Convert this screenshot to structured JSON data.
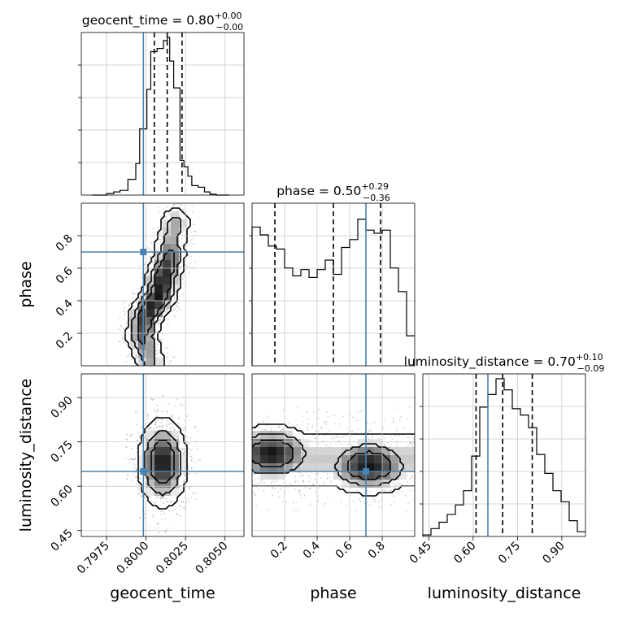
{
  "chart_data": {
    "type": "corner",
    "parameters": [
      "geocent_time",
      "phase",
      "luminosity_distance"
    ],
    "axis_labels": [
      "geocent_time",
      "phase",
      "luminosity_distance"
    ],
    "ranges": {
      "geocent_time": [
        0.7959,
        0.8062
      ],
      "phase": [
        0.0,
        1.0
      ],
      "luminosity_distance": [
        0.43,
        0.98
      ]
    },
    "ticks": {
      "geocent_time": {
        "values": [
          0.7975,
          0.8,
          0.8025,
          0.805
        ],
        "labels": [
          "0.7975",
          "0.8000",
          "0.8025",
          "0.8050"
        ]
      },
      "phase": {
        "values": [
          0.2,
          0.4,
          0.6,
          0.8
        ],
        "labels": [
          "0.2",
          "0.4",
          "0.6",
          "0.8"
        ]
      },
      "luminosity_distance": {
        "values": [
          0.45,
          0.6,
          0.75,
          0.9
        ],
        "labels": [
          "0.45",
          "0.60",
          "0.75",
          "0.90"
        ]
      }
    },
    "truths": {
      "geocent_time": 0.79983,
      "phase": 0.7,
      "luminosity_distance": 0.65
    },
    "truth_color": "#4682b4",
    "grid": true,
    "titles": [
      {
        "param": "geocent_time",
        "label": "geocent_time = 0.80",
        "plus": "+0.00",
        "minus": "−0.00"
      },
      {
        "param": "phase",
        "label": "phase = 0.50",
        "plus": "+0.29",
        "minus": "−0.36"
      },
      {
        "param": "luminosity_distance",
        "label": "luminosity_distance = 0.70",
        "plus": "+0.10",
        "minus": "−0.09"
      }
    ],
    "quantiles": {
      "geocent_time": [
        0.80052,
        0.80134,
        0.80228
      ],
      "phase": [
        0.14,
        0.5,
        0.79
      ],
      "luminosity_distance": [
        0.61,
        0.7,
        0.8
      ]
    },
    "histograms": {
      "geocent_time": {
        "bins": [
          0.7966,
          0.7975,
          0.79795,
          0.79835,
          0.79885,
          0.79935,
          0.7996,
          0.80005,
          0.8003,
          0.8007,
          0.8011,
          0.80135,
          0.8015,
          0.80175,
          0.80215,
          0.8024,
          0.80265,
          0.8029,
          0.8033,
          0.8037,
          0.80405,
          0.80445,
          0.8048,
          0.80525
        ],
        "counts": [
          0.0,
          0.01,
          0.02,
          0.03,
          0.1,
          0.2,
          0.42,
          0.67,
          0.91,
          0.93,
          0.98,
          1.0,
          0.85,
          0.68,
          0.22,
          0.18,
          0.12,
          0.06,
          0.05,
          0.02,
          0.005,
          0.0,
          0.0
        ]
      },
      "phase": {
        "bins": [
          0.0,
          0.05,
          0.1,
          0.15,
          0.2,
          0.25,
          0.3,
          0.35,
          0.4,
          0.45,
          0.5,
          0.55,
          0.6,
          0.65,
          0.7,
          0.75,
          0.8,
          0.85,
          0.9,
          0.95,
          1.0
        ],
        "counts": [
          0.88,
          0.83,
          0.76,
          0.74,
          0.62,
          0.57,
          0.61,
          0.56,
          0.61,
          0.67,
          0.58,
          0.75,
          0.8,
          0.93,
          0.86,
          0.84,
          0.86,
          0.62,
          0.47,
          0.19
        ]
      },
      "luminosity_distance": {
        "bins": [
          0.43,
          0.4575,
          0.485,
          0.5125,
          0.54,
          0.5675,
          0.595,
          0.6225,
          0.65,
          0.6775,
          0.705,
          0.7325,
          0.76,
          0.7875,
          0.815,
          0.8425,
          0.87,
          0.8975,
          0.925,
          0.9525,
          0.98
        ],
        "counts": [
          0.01,
          0.05,
          0.09,
          0.14,
          0.2,
          0.29,
          0.51,
          0.82,
          0.9,
          1.0,
          0.93,
          0.81,
          0.77,
          0.69,
          0.52,
          0.4,
          0.29,
          0.22,
          0.1,
          0.03
        ]
      }
    },
    "density_pairs": [
      {
        "x": "geocent_time",
        "y": "phase",
        "ridge": [
          [
            0.80025,
            0.03
          ],
          [
            0.79975,
            0.18
          ],
          [
            0.79995,
            0.3
          ],
          [
            0.8009,
            0.45
          ],
          [
            0.8011,
            0.55
          ],
          [
            0.80145,
            0.65
          ],
          [
            0.80155,
            0.75
          ],
          [
            0.80185,
            0.88
          ]
        ]
      },
      {
        "x": "geocent_time",
        "y": "luminosity_distance",
        "center": [
          0.80105,
          0.68
        ],
        "spread": [
          0.0009,
          0.085
        ]
      },
      {
        "x": "phase",
        "y": "luminosity_distance",
        "center_left": [
          0.12,
          0.71
        ],
        "center_right": [
          0.72,
          0.67
        ],
        "spread": [
          0.16,
          0.055
        ]
      }
    ]
  }
}
